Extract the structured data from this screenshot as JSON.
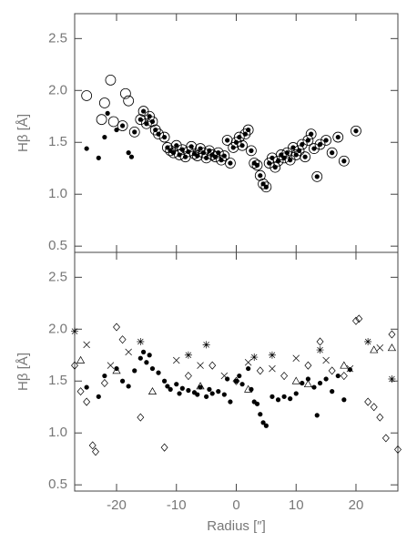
{
  "chart_data": [
    {
      "type": "scatter",
      "ylabel": "Hβ [Å]",
      "xlim": [
        -27,
        27
      ],
      "ylim": [
        0.44,
        2.74
      ],
      "xticks": [
        -20,
        -10,
        0,
        10,
        20
      ],
      "show_xtick_labels": false,
      "yticks": [
        0.5,
        {
          "value": 1,
          "label": "1.0"
        },
        1.5,
        {
          "value": 2,
          "label": "2.0"
        },
        2.5
      ],
      "series": [
        {
          "marker": "dot",
          "color": "#000000",
          "x": [
            -25,
            -23,
            -22,
            -21.5,
            -20,
            -19,
            -18,
            -17.5,
            -17,
            -16,
            -15.5,
            -15,
            -14.5,
            -14,
            -13.5,
            -13,
            -12,
            -11.5,
            -11,
            -10.5,
            -10,
            -9.5,
            -9,
            -8.5,
            -8,
            -7.5,
            -7,
            -6.5,
            -6,
            -5.5,
            -5,
            -4.5,
            -4,
            -3.5,
            -3,
            -2.5,
            -2,
            -1.5,
            -1,
            -0.5,
            0,
            0.5,
            1,
            1.5,
            2,
            2.5,
            3,
            3.5,
            4,
            4.5,
            5,
            5.5,
            6,
            6.5,
            7,
            7.5,
            8,
            8.5,
            9,
            9.5,
            10,
            10.5,
            11,
            11.5,
            12,
            12.5,
            13,
            13.5,
            14,
            15,
            16,
            17,
            18,
            20
          ],
          "values": [
            1.44,
            1.35,
            1.55,
            1.78,
            1.62,
            1.66,
            1.4,
            1.36,
            1.6,
            1.72,
            1.8,
            1.68,
            1.75,
            1.7,
            1.62,
            1.58,
            1.55,
            1.45,
            1.42,
            1.4,
            1.47,
            1.38,
            1.43,
            1.36,
            1.41,
            1.46,
            1.39,
            1.37,
            1.44,
            1.4,
            1.35,
            1.42,
            1.38,
            1.36,
            1.4,
            1.33,
            1.37,
            1.52,
            1.3,
            1.45,
            1.5,
            1.55,
            1.47,
            1.58,
            1.62,
            1.42,
            1.3,
            1.28,
            1.18,
            1.1,
            1.07,
            1.3,
            1.35,
            1.26,
            1.32,
            1.38,
            1.35,
            1.4,
            1.33,
            1.45,
            1.38,
            1.42,
            1.48,
            1.36,
            1.52,
            1.58,
            1.44,
            1.17,
            1.48,
            1.52,
            1.4,
            1.55,
            1.32,
            1.61
          ]
        },
        {
          "marker": "circle",
          "color": "#000000",
          "x": [
            -25,
            -22.5,
            -22,
            -21,
            -20.5,
            -18.5,
            -18,
            -19,
            -17,
            -16,
            -15.5,
            -15,
            -14.5,
            -14,
            -13.5,
            -13,
            -12,
            -11.5,
            -11,
            -10.5,
            -10,
            -9.5,
            -9,
            -8.5,
            -8,
            -7.5,
            -7,
            -6.5,
            -6,
            -5.5,
            -5,
            -4.5,
            -4,
            -3.5,
            -3,
            -2.5,
            -2,
            -1.5,
            -1,
            -0.5,
            0,
            0.5,
            1,
            1.5,
            2,
            2.5,
            3,
            3.5,
            4,
            4.5,
            5,
            5.5,
            6,
            6.5,
            7,
            7.5,
            8,
            8.5,
            9,
            9.5,
            10,
            10.5,
            11,
            11.5,
            12,
            12.5,
            13,
            13.5,
            14,
            15,
            16,
            17,
            18,
            20
          ],
          "values": [
            1.95,
            1.72,
            1.88,
            2.1,
            1.7,
            1.97,
            1.9,
            1.66,
            1.6,
            1.72,
            1.8,
            1.68,
            1.75,
            1.7,
            1.62,
            1.58,
            1.55,
            1.45,
            1.42,
            1.4,
            1.47,
            1.38,
            1.43,
            1.36,
            1.41,
            1.46,
            1.39,
            1.37,
            1.44,
            1.4,
            1.35,
            1.42,
            1.38,
            1.36,
            1.4,
            1.33,
            1.37,
            1.52,
            1.3,
            1.45,
            1.5,
            1.55,
            1.47,
            1.58,
            1.62,
            1.42,
            1.3,
            1.28,
            1.18,
            1.1,
            1.07,
            1.3,
            1.35,
            1.26,
            1.32,
            1.38,
            1.35,
            1.4,
            1.33,
            1.45,
            1.38,
            1.42,
            1.48,
            1.36,
            1.52,
            1.58,
            1.44,
            1.17,
            1.48,
            1.52,
            1.4,
            1.55,
            1.32,
            1.61
          ]
        }
      ]
    },
    {
      "type": "scatter",
      "ylabel": "Hβ [Å]",
      "xlabel": "Radius [″]",
      "xlim": [
        -27,
        27
      ],
      "ylim": [
        0.44,
        2.74
      ],
      "xticks": [
        -20,
        -10,
        0,
        10,
        20
      ],
      "show_xtick_labels": true,
      "yticks": [
        0.5,
        {
          "value": 1,
          "label": "1.0"
        },
        1.5,
        {
          "value": 2,
          "label": "2.0"
        },
        2.5
      ],
      "series": [
        {
          "marker": "dot",
          "color": "#000000",
          "x": [
            -25,
            -23,
            -22,
            -20,
            -19,
            -18,
            -17,
            -16,
            -15.5,
            -15,
            -14.5,
            -14,
            -13,
            -12,
            -11.5,
            -11,
            -10,
            -9.5,
            -9,
            -8,
            -7,
            -6.5,
            -6,
            -5,
            -4.5,
            -4,
            -3,
            -2,
            -1.5,
            -1,
            0,
            0.5,
            1,
            2,
            2.5,
            3,
            3.5,
            4,
            4.5,
            5,
            6,
            7,
            8,
            9,
            10,
            11,
            12,
            13,
            13.5,
            14,
            15,
            16,
            17,
            18,
            19
          ],
          "values": [
            1.44,
            1.35,
            1.55,
            1.62,
            1.5,
            1.45,
            1.6,
            1.72,
            1.78,
            1.68,
            1.75,
            1.62,
            1.58,
            1.5,
            1.45,
            1.42,
            1.47,
            1.38,
            1.43,
            1.41,
            1.39,
            1.37,
            1.44,
            1.35,
            1.42,
            1.38,
            1.4,
            1.37,
            1.52,
            1.3,
            1.5,
            1.55,
            1.47,
            1.62,
            1.42,
            1.3,
            1.28,
            1.18,
            1.1,
            1.07,
            1.35,
            1.32,
            1.35,
            1.33,
            1.38,
            1.48,
            1.52,
            1.44,
            1.17,
            1.48,
            1.52,
            1.4,
            1.55,
            1.32,
            1.61
          ]
        },
        {
          "marker": "diamond",
          "color": "#000000",
          "x": [
            -27,
            -26,
            -25,
            -24,
            -23.5,
            -22,
            -20,
            -19,
            -16,
            -12,
            -8,
            -4,
            0,
            4,
            8,
            12,
            14,
            16,
            18,
            20,
            20.5,
            22,
            23,
            24,
            25,
            26,
            27
          ],
          "values": [
            1.65,
            1.4,
            1.3,
            0.88,
            0.82,
            1.48,
            2.02,
            1.9,
            1.15,
            0.86,
            1.55,
            1.65,
            1.5,
            1.6,
            1.55,
            1.65,
            1.88,
            1.6,
            1.55,
            2.08,
            2.1,
            1.3,
            1.25,
            1.15,
            0.95,
            1.95,
            0.84
          ]
        },
        {
          "marker": "x",
          "color": "#000000",
          "x": [
            -25,
            -21,
            -18,
            -10,
            -6,
            -2,
            2,
            6,
            10,
            15,
            19,
            24
          ],
          "values": [
            1.85,
            1.65,
            1.78,
            1.7,
            1.65,
            1.55,
            1.68,
            1.62,
            1.72,
            1.7,
            1.62,
            1.82
          ]
        },
        {
          "marker": "asterisk",
          "color": "#000000",
          "x": [
            -27,
            -16,
            -8,
            -5,
            3,
            6,
            14,
            22,
            26
          ],
          "values": [
            1.98,
            1.88,
            1.75,
            1.85,
            1.73,
            1.75,
            1.8,
            1.88,
            1.52
          ]
        },
        {
          "marker": "triangle",
          "color": "#000000",
          "x": [
            -26,
            -20,
            -14,
            -6,
            2,
            10,
            12,
            18,
            23,
            26
          ],
          "values": [
            1.7,
            1.6,
            1.4,
            1.45,
            1.42,
            1.5,
            1.47,
            1.65,
            1.8,
            1.82
          ]
        }
      ]
    }
  ]
}
